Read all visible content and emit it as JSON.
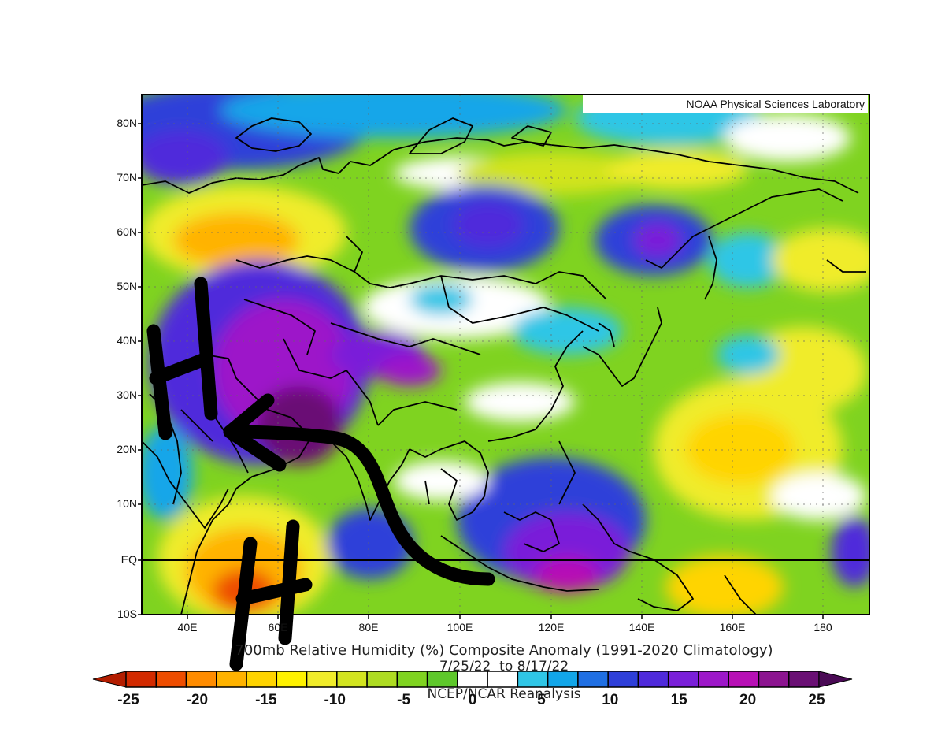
{
  "credit": "NOAA Physical Sciences Laboratory",
  "title": "700mb Relative Humidity (%) Composite Anomaly (1991-2020 Climatology)",
  "date_range": "7/25/22  to 8/17/22",
  "source": "NCEP/NCAR Reanalysis",
  "equator_label": "EQ",
  "lat_labels": [
    "80N",
    "70N",
    "60N",
    "50N",
    "40N",
    "30N",
    "20N",
    "10N",
    "EQ",
    "10S"
  ],
  "lon_labels": [
    "40E",
    "60E",
    "80E",
    "100E",
    "120E",
    "140E",
    "160E",
    "180"
  ],
  "colorbar": {
    "tick_labels": [
      "-25",
      "-20",
      "-15",
      "-10",
      "-5",
      "0",
      "5",
      "10",
      "15",
      "20",
      "25"
    ],
    "colors": [
      "#d22a00",
      "#ee4d00",
      "#ff8c00",
      "#ffb300",
      "#ffd400",
      "#fff200",
      "#f0ec2a",
      "#d2e41f",
      "#aedc22",
      "#7fd320",
      "#5ec82b",
      "#ffffff",
      "#ffffff",
      "#2fc6e6",
      "#12a6e9",
      "#1f6fe3",
      "#2e3fd9",
      "#4f2adb",
      "#7a1fd9",
      "#9d17c9",
      "#b70fb5",
      "#8c1490",
      "#6a0f74"
    ],
    "left_cap": "#b31d00",
    "right_cap": "#4a0a55"
  },
  "annotations": {
    "marker_1": "H",
    "marker_2": "H"
  },
  "colors": {
    "dry_orange": "#ff9800",
    "neutral_green": "#7fd320",
    "wet_blue": "#2e3fd9",
    "wet_purple": "#8c1490",
    "ink": "#000000"
  }
}
